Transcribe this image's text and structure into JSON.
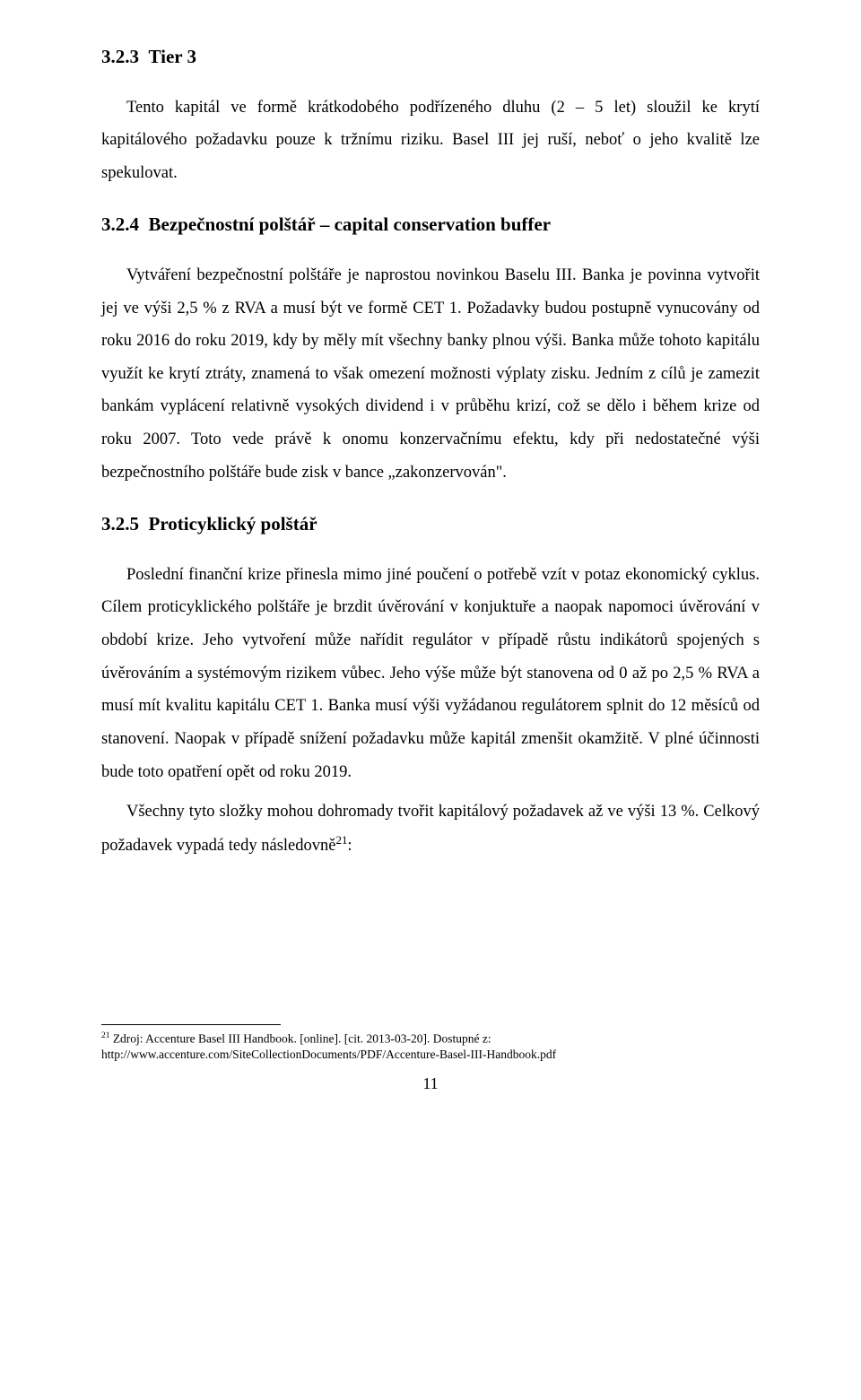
{
  "section1": {
    "heading_num": "3.2.3",
    "heading_title": "Tier 3",
    "para1": "Tento kapitál ve formě krátkodobého podřízeného dluhu (2 – 5 let) sloužil ke krytí kapitálového požadavku pouze k tržnímu riziku. Basel III jej ruší, neboť o jeho kvalitě lze spekulovat."
  },
  "section2": {
    "heading_num": "3.2.4",
    "heading_title": "Bezpečnostní polštář – capital conservation buffer",
    "para1": "Vytváření bezpečnostní polštáře je naprostou novinkou Baselu III. Banka je povinna vytvořit jej ve výši 2,5 % z RVA a musí být ve formě CET 1. Požadavky budou postupně vynucovány od roku 2016 do roku 2019, kdy by měly mít všechny banky plnou výši. Banka může tohoto kapitálu využít ke krytí ztráty, znamená to však omezení možnosti výplaty zisku. Jedním z cílů je zamezit bankám vyplácení relativně vysokých dividend i v průběhu krizí, což se dělo i během krize od roku 2007. Toto vede právě k onomu konzervačnímu efektu, kdy při nedostatečné výši bezpečnostního polštáře bude zisk v bance „zakonzervován\"."
  },
  "section3": {
    "heading_num": "3.2.5",
    "heading_title": "Proticyklický polštář",
    "para1": "Poslední finanční krize přinesla mimo jiné poučení o potřebě vzít v potaz ekonomický cyklus. Cílem proticyklického polštáře je brzdit úvěrování v konjuktuře a  naopak napomoci úvěrování v období krize. Jeho vytvoření může nařídit regulátor v případě růstu indikátorů spojených s úvěrováním a systémovým rizikem vůbec. Jeho výše může být stanovena od 0 až po 2,5 % RVA a musí mít kvalitu kapitálu CET 1. Banka musí výši vyžádanou regulátorem splnit do 12 měsíců od stanovení. Naopak v případě snížení požadavku může kapitál zmenšit okamžitě. V plné účinnosti bude toto opatření opět od roku 2019.",
    "para2_pre": "Všechny tyto složky mohou dohromady tvořit kapitálový požadavek až ve výši 13 %. Celkový požadavek vypadá tedy následovně",
    "para2_sup": "21",
    "para2_post": ":"
  },
  "footnote": {
    "marker": "21",
    "text_line1": " Zdroj: Accenture Basel III Handbook. [online]. [cit. 2013-03-20]. Dostupné z:",
    "text_line2": "http://www.accenture.com/SiteCollectionDocuments/PDF/Accenture-Basel-III-Handbook.pdf"
  },
  "page_number": "11"
}
